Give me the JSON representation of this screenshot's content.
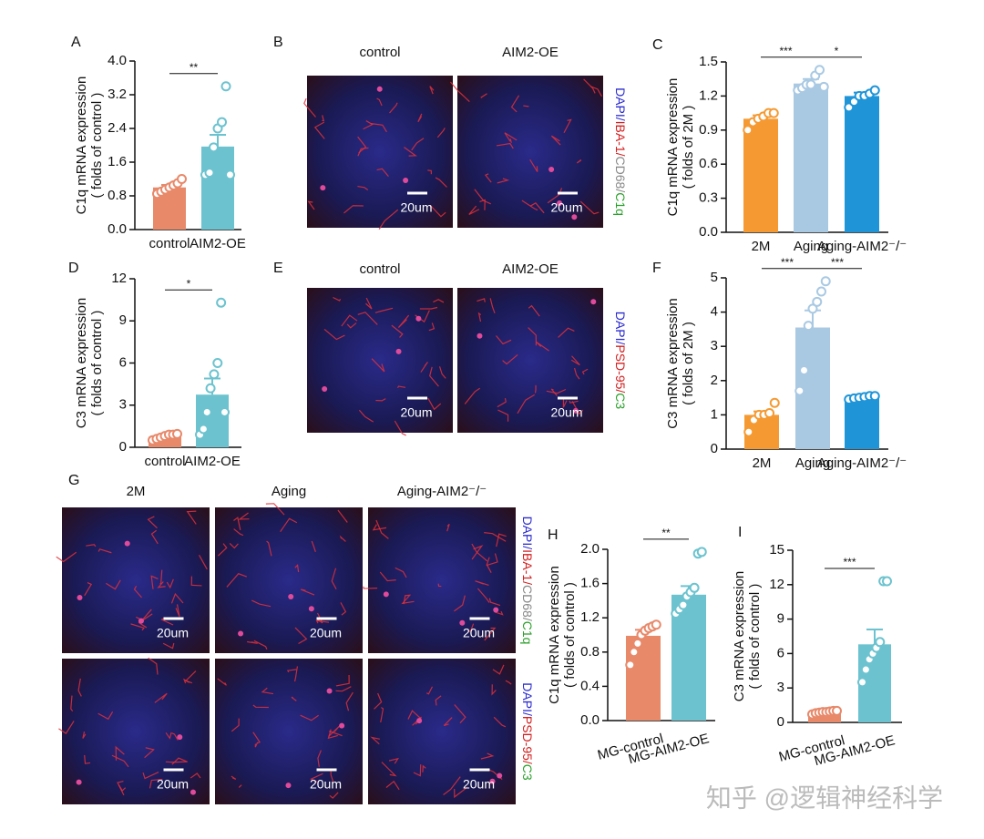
{
  "chart_data": [
    {
      "type": "bar",
      "panel": "A",
      "ylabel": [
        "C1q mRNA expression",
        "( folds of control )"
      ],
      "categories": [
        "control",
        "AIM2-OE"
      ],
      "values": [
        1.0,
        1.97
      ],
      "errors": [
        0.06,
        0.28
      ],
      "points": [
        [
          0.85,
          0.9,
          0.95,
          1.0,
          1.05,
          1.1,
          1.2
        ],
        [
          1.3,
          1.35,
          1.95,
          2.4,
          2.55,
          3.4,
          1.3
        ]
      ],
      "colors": [
        "#e8896a",
        "#6cc3cf"
      ],
      "ylim": [
        0,
        4
      ],
      "yticks": [
        {
          "value": 0,
          "label": "0.0"
        },
        0.8,
        1.6,
        2.4,
        3.2,
        {
          "value": 4,
          "label": "4.0"
        }
      ],
      "annotations": [
        {
          "text": "**",
          "between": [
            "control",
            "AIM2-OE"
          ]
        }
      ]
    },
    {
      "type": "bar",
      "panel": "C",
      "ylabel": [
        "C1q mRNA expression",
        "( folds of 2M )"
      ],
      "categories": [
        "2M",
        "Aging",
        "Aging-AIM2⁻/⁻"
      ],
      "values": [
        1.0,
        1.31,
        1.2
      ],
      "errors": [
        0.03,
        0.04,
        0.03
      ],
      "points": [
        [
          0.9,
          0.97,
          1.0,
          1.02,
          1.05,
          1.05
        ],
        [
          1.25,
          1.27,
          1.3,
          1.3,
          1.38,
          1.43,
          1.28
        ],
        [
          1.1,
          1.15,
          1.2,
          1.2,
          1.22,
          1.25
        ]
      ],
      "colors": [
        "#f59a33",
        "#a9c9e3",
        "#1f95d8"
      ],
      "ylim": [
        0,
        1.5
      ],
      "yticks": [
        {
          "value": 0,
          "label": "0.0"
        },
        0.3,
        0.6,
        0.9,
        1.2,
        1.5
      ],
      "annotations": [
        {
          "text": "***",
          "between": [
            "2M",
            "Aging"
          ]
        },
        {
          "text": "*",
          "between": [
            "Aging",
            "Aging-AIM2⁻/⁻"
          ]
        }
      ]
    },
    {
      "type": "bar",
      "panel": "D",
      "ylabel": [
        "C3 mRNA expression",
        "( folds of control )"
      ],
      "categories": [
        "control",
        "AIM2-OE"
      ],
      "values": [
        0.75,
        3.75
      ],
      "errors": [
        0.08,
        1.15
      ],
      "points": [
        [
          0.5,
          0.6,
          0.7,
          0.8,
          0.9,
          0.9,
          0.95
        ],
        [
          0.9,
          1.3,
          2.5,
          4.2,
          5.2,
          6.0,
          10.3,
          2.5
        ]
      ],
      "colors": [
        "#e8896a",
        "#6cc3cf"
      ],
      "ylim": [
        0,
        12
      ],
      "yticks": [
        0,
        3,
        6,
        9,
        12
      ],
      "annotations": [
        {
          "text": "*",
          "between": [
            "control",
            "AIM2-OE"
          ]
        }
      ]
    },
    {
      "type": "bar",
      "panel": "F",
      "ylabel": [
        "C3 mRNA expression",
        "( folds of 2M )"
      ],
      "categories": [
        "2M",
        "Aging",
        "Aging-AIM2⁻/⁻"
      ],
      "values": [
        1.0,
        3.55,
        1.5
      ],
      "errors": [
        0.1,
        0.5,
        0.04
      ],
      "points": [
        [
          0.5,
          0.85,
          1.0,
          1.0,
          1.05,
          1.35
        ],
        [
          1.7,
          2.3,
          3.6,
          4.1,
          4.3,
          4.6,
          4.9
        ],
        [
          1.45,
          1.48,
          1.5,
          1.52,
          1.55,
          1.55
        ]
      ],
      "colors": [
        "#f59a33",
        "#a9c9e3",
        "#1f95d8"
      ],
      "ylim": [
        0,
        5
      ],
      "yticks": [
        0,
        1,
        2,
        3,
        4,
        5
      ],
      "annotations": [
        {
          "text": "***",
          "between": [
            "2M",
            "Aging"
          ]
        },
        {
          "text": "***",
          "between": [
            "Aging",
            "Aging-AIM2⁻/⁻"
          ]
        }
      ]
    },
    {
      "type": "bar",
      "panel": "H",
      "ylabel": [
        "C1q mRNA expression",
        "( folds of control )"
      ],
      "categories": [
        "MG-control",
        "MG-AIM2-OE"
      ],
      "values": [
        0.99,
        1.47
      ],
      "errors": [
        0.07,
        0.1
      ],
      "points": [
        [
          0.65,
          0.8,
          0.9,
          1.0,
          1.05,
          1.08,
          1.1,
          1.12
        ],
        [
          1.25,
          1.3,
          1.35,
          1.45,
          1.5,
          1.55,
          1.95,
          1.97
        ]
      ],
      "colors": [
        "#e8896a",
        "#6cc3cf"
      ],
      "ylim": [
        0,
        2
      ],
      "yticks": [
        {
          "value": 0,
          "label": "0.0"
        },
        0.4,
        0.8,
        1.2,
        1.6,
        {
          "value": 2,
          "label": "2.0"
        }
      ],
      "annotations": [
        {
          "text": "**",
          "between": [
            "MG-control",
            "MG-AIM2-OE"
          ]
        }
      ]
    },
    {
      "type": "bar",
      "panel": "I",
      "ylabel": [
        "C3 mRNA expression",
        "( folds of control )"
      ],
      "categories": [
        "MG-control",
        "MG-AIM2-OE"
      ],
      "values": [
        0.9,
        6.8
      ],
      "errors": [
        0.05,
        1.3
      ],
      "points": [
        [
          0.7,
          0.8,
          0.85,
          0.9,
          0.9,
          0.95,
          1.0,
          1.0
        ],
        [
          3.5,
          4.6,
          5.5,
          6.0,
          6.5,
          7.0,
          12.3,
          12.3
        ]
      ],
      "colors": [
        "#e8896a",
        "#6cc3cf"
      ],
      "ylim": [
        0,
        15
      ],
      "yticks": [
        0,
        3,
        6,
        9,
        12,
        15
      ],
      "annotations": [
        {
          "text": "***",
          "between": [
            "MG-control",
            "MG-AIM2-OE"
          ]
        }
      ]
    }
  ],
  "micrographs": [
    {
      "panel": "B",
      "columns": [
        "control",
        "AIM2-OE"
      ],
      "rows": [
        {
          "stain": [
            {
              "text": "DAPI/",
              "color": "#2b2bd0"
            },
            {
              "text": "IBA-1/",
              "color": "#d42020"
            },
            {
              "text": "CD68/",
              "color": "#888888"
            },
            {
              "text": "C1q",
              "color": "#2aa02a"
            }
          ],
          "scale_bars": [
            "20um",
            "20um"
          ]
        }
      ]
    },
    {
      "panel": "E",
      "columns": [
        "control",
        "AIM2-OE"
      ],
      "rows": [
        {
          "stain": [
            {
              "text": "DAPI/",
              "color": "#2b2bd0"
            },
            {
              "text": "PSD-95/",
              "color": "#d42020"
            },
            {
              "text": "C3",
              "color": "#2aa02a"
            }
          ],
          "scale_bars": [
            "20um",
            "20um"
          ]
        }
      ]
    },
    {
      "panel": "G",
      "columns": [
        "2M",
        "Aging",
        "Aging-AIM2⁻/⁻"
      ],
      "rows": [
        {
          "stain": [
            {
              "text": "DAPI/",
              "color": "#2b2bd0"
            },
            {
              "text": "IBA-1/",
              "color": "#d42020"
            },
            {
              "text": "CD68/",
              "color": "#888888"
            },
            {
              "text": "C1q",
              "color": "#2aa02a"
            }
          ],
          "scale_bars": [
            "20um",
            "20um",
            "20um"
          ]
        },
        {
          "stain": [
            {
              "text": "DAPI/",
              "color": "#2b2bd0"
            },
            {
              "text": "PSD-95/",
              "color": "#d42020"
            },
            {
              "text": "C3",
              "color": "#2aa02a"
            }
          ],
          "scale_bars": [
            "20um",
            "20um",
            "20um"
          ]
        }
      ]
    }
  ],
  "watermark": "知乎 @逻辑神经科学"
}
